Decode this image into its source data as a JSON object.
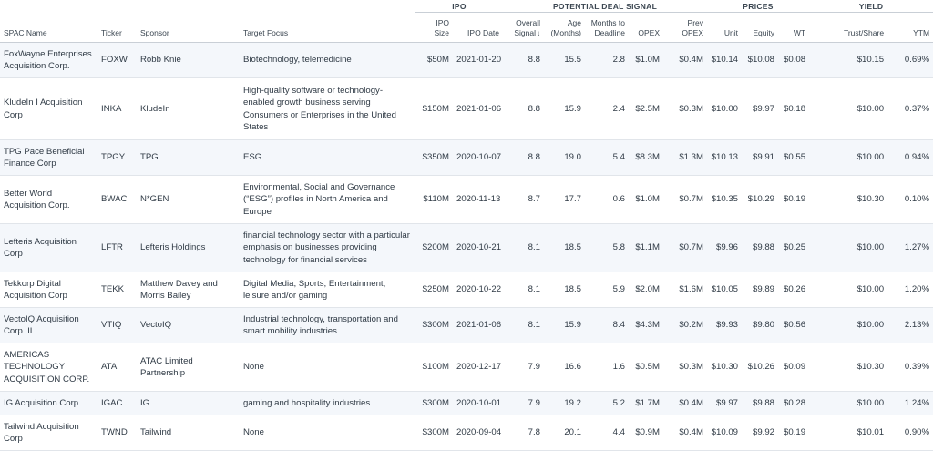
{
  "groups": {
    "ipo": "IPO",
    "signal": "POTENTIAL DEAL SIGNAL",
    "prices": "PRICES",
    "yield": "YIELD"
  },
  "columns": {
    "name": "SPAC Name",
    "ticker": "Ticker",
    "sponsor": "Sponsor",
    "target": "Target Focus",
    "ipo_size": "IPO Size",
    "ipo_date": "IPO Date",
    "overall": "Overall Signal",
    "age": "Age (Months)",
    "months_deadline": "Months to Deadline",
    "opex": "OPEX",
    "prev_opex": "Prev OPEX",
    "unit": "Unit",
    "equity": "Equity",
    "wt": "WT",
    "trust": "Trust/Share",
    "ytm": "YTM"
  },
  "sort_indicator": "↓",
  "rows": [
    {
      "name": "FoxWayne Enterprises Acquisition Corp.",
      "ticker": "FOXW",
      "sponsor": "Robb Knie",
      "target": "Biotechnology, telemedicine",
      "ipo_size": "$50M",
      "ipo_date": "2021-01-20",
      "overall": "8.8",
      "age": "15.5",
      "deadline": "2.8",
      "opex": "$1.0M",
      "prev_opex": "$0.4M",
      "unit": "$10.14",
      "equity": "$10.08",
      "wt": "$0.08",
      "trust": "$10.15",
      "ytm": "0.69%"
    },
    {
      "name": "KludeIn I Acquisition Corp",
      "ticker": "INKA",
      "sponsor": "KludeIn",
      "target": "High-quality software or technology-enabled growth business serving Consumers or Enterprises in the United States",
      "ipo_size": "$150M",
      "ipo_date": "2021-01-06",
      "overall": "8.8",
      "age": "15.9",
      "deadline": "2.4",
      "opex": "$2.5M",
      "prev_opex": "$0.3M",
      "unit": "$10.00",
      "equity": "$9.97",
      "wt": "$0.18",
      "trust": "$10.00",
      "ytm": "0.37%"
    },
    {
      "name": "TPG Pace Beneficial Finance Corp",
      "ticker": "TPGY",
      "sponsor": "TPG",
      "target": "ESG",
      "ipo_size": "$350M",
      "ipo_date": "2020-10-07",
      "overall": "8.8",
      "age": "19.0",
      "deadline": "5.4",
      "opex": "$8.3M",
      "prev_opex": "$1.3M",
      "unit": "$10.13",
      "equity": "$9.91",
      "wt": "$0.55",
      "trust": "$10.00",
      "ytm": "0.94%"
    },
    {
      "name": "Better World Acquisition Corp.",
      "ticker": "BWAC",
      "sponsor": "N*GEN",
      "target": "Environmental, Social and Governance (“ESG”) profiles in North America and Europe",
      "ipo_size": "$110M",
      "ipo_date": "2020-11-13",
      "overall": "8.7",
      "age": "17.7",
      "deadline": "0.6",
      "opex": "$1.0M",
      "prev_opex": "$0.7M",
      "unit": "$10.35",
      "equity": "$10.29",
      "wt": "$0.19",
      "trust": "$10.30",
      "ytm": "0.10%"
    },
    {
      "name": "Lefteris Acquisition Corp",
      "ticker": "LFTR",
      "sponsor": "Lefteris Holdings",
      "target": "financial technology sector with a particular emphasis on businesses providing technology for financial services",
      "ipo_size": "$200M",
      "ipo_date": "2020-10-21",
      "overall": "8.1",
      "age": "18.5",
      "deadline": "5.8",
      "opex": "$1.1M",
      "prev_opex": "$0.7M",
      "unit": "$9.96",
      "equity": "$9.88",
      "wt": "$0.25",
      "trust": "$10.00",
      "ytm": "1.27%"
    },
    {
      "name": "Tekkorp Digital Acquisition Corp",
      "ticker": "TEKK",
      "sponsor": "Matthew Davey and Morris Bailey",
      "target": "Digital Media, Sports, Entertainment, leisure and/or gaming",
      "ipo_size": "$250M",
      "ipo_date": "2020-10-22",
      "overall": "8.1",
      "age": "18.5",
      "deadline": "5.9",
      "opex": "$2.0M",
      "prev_opex": "$1.6M",
      "unit": "$10.05",
      "equity": "$9.89",
      "wt": "$0.26",
      "trust": "$10.00",
      "ytm": "1.20%"
    },
    {
      "name": "VectoIQ Acquisition Corp. II",
      "ticker": "VTIQ",
      "sponsor": "VectoIQ",
      "target": "Industrial technology, transportation and smart mobility industries",
      "ipo_size": "$300M",
      "ipo_date": "2021-01-06",
      "overall": "8.1",
      "age": "15.9",
      "deadline": "8.4",
      "opex": "$4.3M",
      "prev_opex": "$0.2M",
      "unit": "$9.93",
      "equity": "$9.80",
      "wt": "$0.56",
      "trust": "$10.00",
      "ytm": "2.13%"
    },
    {
      "name": "AMERICAS TECHNOLOGY ACQUISITION CORP.",
      "ticker": "ATA",
      "sponsor": "ATAC Limited Partnership",
      "target": "None",
      "ipo_size": "$100M",
      "ipo_date": "2020-12-17",
      "overall": "7.9",
      "age": "16.6",
      "deadline": "1.6",
      "opex": "$0.5M",
      "prev_opex": "$0.3M",
      "unit": "$10.30",
      "equity": "$10.26",
      "wt": "$0.09",
      "trust": "$10.30",
      "ytm": "0.39%"
    },
    {
      "name": "IG Acquisition Corp",
      "ticker": "IGAC",
      "sponsor": "IG",
      "target": "gaming and hospitality industries",
      "ipo_size": "$300M",
      "ipo_date": "2020-10-01",
      "overall": "7.9",
      "age": "19.2",
      "deadline": "5.2",
      "opex": "$1.7M",
      "prev_opex": "$0.4M",
      "unit": "$9.97",
      "equity": "$9.88",
      "wt": "$0.28",
      "trust": "$10.00",
      "ytm": "1.24%"
    },
    {
      "name": "Tailwind Acquisition Corp",
      "ticker": "TWND",
      "sponsor": "Tailwind",
      "target": "None",
      "ipo_size": "$300M",
      "ipo_date": "2020-09-04",
      "overall": "7.8",
      "age": "20.1",
      "deadline": "4.4",
      "opex": "$0.9M",
      "prev_opex": "$0.4M",
      "unit": "$10.09",
      "equity": "$9.92",
      "wt": "$0.19",
      "trust": "$10.01",
      "ytm": "0.90%"
    }
  ]
}
